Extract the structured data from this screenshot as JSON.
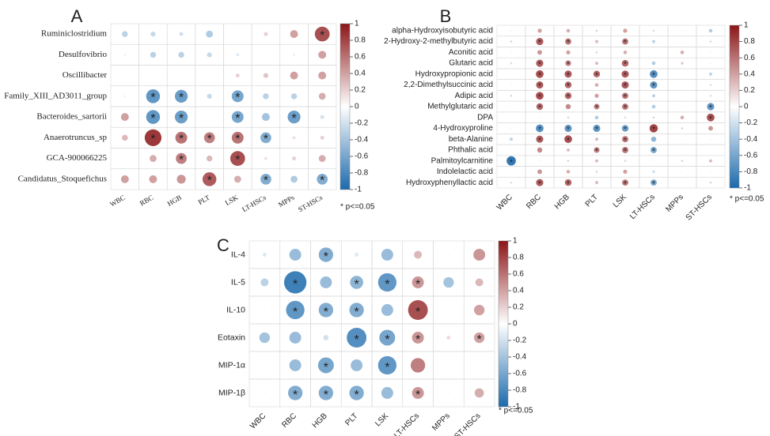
{
  "chart_data": [
    {
      "type": "corrplot",
      "title": "A",
      "rows": [
        "Ruminiclostridium",
        "Desulfovibrio",
        "Oscillibacter",
        "Family_XIII_AD3011_group",
        "Bacteroides_sartorii",
        "Anaerotruncus_sp",
        "GCA-900066225",
        "Candidatus_Stoquefichus"
      ],
      "columns": [
        "WBC",
        "RBC",
        "HGB",
        "PLT",
        "LSK",
        "LT-HSCs",
        "MPPs",
        "ST-HSCs"
      ],
      "values": [
        [
          -0.3,
          -0.25,
          -0.2,
          -0.35,
          0,
          0.2,
          0.4,
          0.75
        ],
        [
          -0.1,
          -0.3,
          -0.3,
          -0.25,
          -0.15,
          0.05,
          0.1,
          0.4
        ],
        [
          0.05,
          -0.05,
          -0.05,
          0.05,
          0.2,
          0.25,
          0.4,
          0.4
        ],
        [
          -0.1,
          -0.7,
          -0.65,
          -0.25,
          -0.6,
          -0.3,
          -0.3,
          0.35
        ],
        [
          0.4,
          -0.7,
          -0.65,
          0.05,
          -0.6,
          -0.4,
          -0.65,
          -0.2
        ],
        [
          0.3,
          0.85,
          0.6,
          0.55,
          0.6,
          -0.55,
          0.15,
          0.2
        ],
        [
          0.05,
          0.35,
          0.55,
          0.3,
          0.75,
          0.15,
          0.2,
          0.35
        ],
        [
          0.4,
          0.4,
          0.45,
          0.7,
          0.35,
          -0.55,
          -0.35,
          -0.55
        ]
      ],
      "significant": [
        [
          false,
          false,
          false,
          false,
          false,
          false,
          false,
          true
        ],
        [
          false,
          false,
          false,
          false,
          false,
          false,
          false,
          false
        ],
        [
          false,
          false,
          false,
          false,
          false,
          false,
          false,
          false
        ],
        [
          false,
          true,
          true,
          false,
          true,
          false,
          false,
          false
        ],
        [
          false,
          true,
          true,
          false,
          true,
          false,
          true,
          false
        ],
        [
          false,
          true,
          true,
          true,
          true,
          true,
          false,
          false
        ],
        [
          false,
          false,
          true,
          false,
          true,
          false,
          false,
          false
        ],
        [
          false,
          false,
          false,
          true,
          false,
          true,
          false,
          true
        ]
      ],
      "star": "*",
      "note": "* p<=0.05",
      "clim": [
        -1,
        1
      ],
      "colorbar_ticks": [
        1,
        0.8,
        0.6,
        0.4,
        0.2,
        0,
        -0.2,
        -0.4,
        -0.6,
        -0.8,
        -1
      ],
      "colors": [
        "#1c6aac",
        "#ffffff",
        "#8b1517"
      ]
    },
    {
      "type": "corrplot",
      "title": "B",
      "rows": [
        "alpha-Hydroxyisobutyric acid",
        "2-Hydroxy-2-methylbutyric acid",
        "Aconitic acid",
        "Glutaric acid",
        "Hydroxypropionic acid",
        "2,2-Dimethylsuccinic acid",
        "Adipic acid",
        "Methylglutaric acid",
        "DPA",
        "4-Hydroxyproline",
        "beta-Alanine",
        "Phthalic acid",
        "Palmitoylcarnitine",
        "Indolelactic acid",
        "Hydroxyphenyllactic acid"
      ],
      "columns": [
        "WBC",
        "RBC",
        "HGB",
        "PLT",
        "LSK",
        "LT-HSCs",
        "MPPs",
        "ST-HSCs"
      ],
      "values": [
        [
          0.1,
          0.4,
          0.35,
          0.2,
          0.4,
          -0.2,
          0.1,
          -0.35
        ],
        [
          0.2,
          0.7,
          0.6,
          0.3,
          0.6,
          -0.3,
          0.1,
          -0.2
        ],
        [
          0.1,
          0.45,
          0.4,
          0.2,
          0.35,
          -0.1,
          0.35,
          0.1
        ],
        [
          -0.2,
          0.7,
          0.55,
          0.3,
          0.65,
          -0.35,
          0.25,
          0.1
        ],
        [
          -0.1,
          0.75,
          0.7,
          0.65,
          0.7,
          -0.75,
          0.1,
          -0.3
        ],
        [
          0.1,
          0.7,
          0.65,
          0.35,
          0.7,
          -0.7,
          0.1,
          -0.2
        ],
        [
          0.2,
          0.75,
          0.65,
          0.4,
          0.6,
          -0.3,
          0.1,
          -0.2
        ],
        [
          -0.1,
          0.65,
          0.5,
          0.55,
          0.6,
          -0.35,
          0.1,
          -0.7
        ],
        [
          0.05,
          0.1,
          0.2,
          -0.35,
          -0.2,
          0.2,
          0.35,
          0.75
        ],
        [
          0.1,
          -0.75,
          -0.7,
          -0.7,
          -0.65,
          0.8,
          0.2,
          0.45
        ],
        [
          -0.3,
          0.7,
          0.75,
          0.3,
          0.6,
          -0.5,
          0.1,
          0.1
        ],
        [
          0.1,
          0.5,
          0.3,
          0.55,
          0.6,
          -0.6,
          0.1,
          0.1
        ],
        [
          -0.9,
          0.1,
          0.2,
          0.3,
          0.2,
          0.1,
          0.2,
          0.3
        ],
        [
          0.05,
          0.45,
          0.35,
          0.2,
          0.4,
          -0.25,
          0.1,
          0.1
        ],
        [
          -0.2,
          0.7,
          0.65,
          0.3,
          0.6,
          -0.6,
          0.1,
          0.2
        ]
      ],
      "significant": [
        [
          false,
          false,
          false,
          false,
          false,
          false,
          false,
          false
        ],
        [
          false,
          true,
          true,
          false,
          true,
          false,
          false,
          false
        ],
        [
          false,
          false,
          false,
          false,
          false,
          false,
          false,
          false
        ],
        [
          false,
          true,
          true,
          false,
          true,
          false,
          false,
          false
        ],
        [
          false,
          true,
          true,
          true,
          true,
          true,
          false,
          false
        ],
        [
          false,
          true,
          true,
          false,
          true,
          true,
          false,
          false
        ],
        [
          false,
          true,
          true,
          false,
          true,
          false,
          false,
          false
        ],
        [
          false,
          true,
          false,
          true,
          true,
          false,
          false,
          true
        ],
        [
          false,
          false,
          false,
          false,
          false,
          false,
          false,
          true
        ],
        [
          false,
          true,
          true,
          true,
          true,
          true,
          false,
          false
        ],
        [
          false,
          true,
          true,
          false,
          true,
          false,
          false,
          false
        ],
        [
          false,
          false,
          false,
          true,
          true,
          true,
          false,
          false
        ],
        [
          true,
          false,
          false,
          false,
          false,
          false,
          false,
          false
        ],
        [
          false,
          false,
          false,
          false,
          false,
          false,
          false,
          false
        ],
        [
          false,
          true,
          true,
          false,
          true,
          true,
          false,
          false
        ]
      ],
      "star": "*",
      "note": "* p<=0.05",
      "clim": [
        -1,
        1
      ],
      "colorbar_ticks": [
        1,
        0.8,
        0.6,
        0.4,
        0.2,
        0,
        -0.2,
        -0.4,
        -0.6,
        -0.8,
        -1
      ],
      "colors": [
        "#1c6aac",
        "#ffffff",
        "#8b1517"
      ]
    },
    {
      "type": "corrplot",
      "title": "C",
      "rows": [
        "IL-4",
        "IL-5",
        "IL-10",
        "Eotaxin",
        "MIP-1α",
        "MIP-1β"
      ],
      "columns": [
        "WBC",
        "RBC",
        "HGB",
        "PLT",
        "LSK",
        "LT-HSCs",
        "MPPs",
        "ST-HSCs"
      ],
      "values": [
        [
          -0.15,
          -0.45,
          -0.55,
          -0.15,
          -0.45,
          0.3,
          0.05,
          0.45
        ],
        [
          -0.3,
          -0.85,
          -0.45,
          -0.5,
          -0.7,
          0.45,
          -0.4,
          0.3
        ],
        [
          0.05,
          -0.7,
          -0.55,
          -0.55,
          -0.45,
          0.75,
          0.05,
          0.4
        ],
        [
          -0.4,
          -0.45,
          -0.2,
          -0.75,
          -0.6,
          0.45,
          0.15,
          0.4
        ],
        [
          0.05,
          -0.45,
          -0.6,
          -0.45,
          -0.7,
          0.55,
          0.05,
          0.05
        ],
        [
          0.05,
          -0.55,
          -0.55,
          -0.55,
          -0.45,
          0.45,
          0.05,
          0.35
        ]
      ],
      "significant": [
        [
          false,
          false,
          true,
          false,
          false,
          false,
          false,
          false
        ],
        [
          false,
          true,
          false,
          true,
          true,
          true,
          false,
          false
        ],
        [
          false,
          true,
          true,
          true,
          false,
          true,
          false,
          false
        ],
        [
          false,
          false,
          false,
          true,
          true,
          true,
          false,
          true
        ],
        [
          false,
          false,
          true,
          false,
          true,
          false,
          false,
          false
        ],
        [
          false,
          true,
          true,
          true,
          false,
          true,
          false,
          false
        ]
      ],
      "star": "*",
      "note": "* p<=0.05",
      "clim": [
        -1,
        1
      ],
      "colorbar_ticks": [
        1,
        0.8,
        0.6,
        0.4,
        0.2,
        0,
        -0.2,
        -0.4,
        -0.6,
        -0.8,
        -1
      ],
      "colors": [
        "#1c6aac",
        "#ffffff",
        "#8b1517"
      ]
    }
  ]
}
